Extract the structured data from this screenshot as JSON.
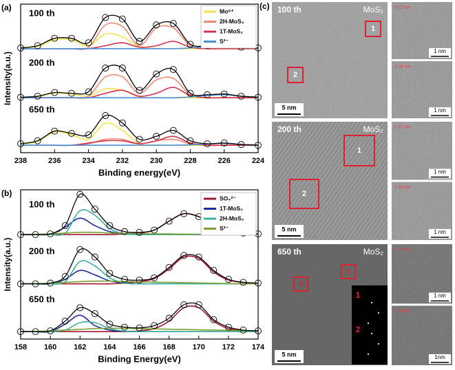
{
  "chart_data": [
    {
      "type": "line",
      "label": "(a)",
      "x_label": "Binding energy(eV)",
      "y_label": "Intensity(a.u.)",
      "x": [
        238,
        237,
        236,
        235,
        234,
        233,
        232,
        231,
        230,
        229,
        228,
        227,
        226,
        225,
        224
      ],
      "xlim": [
        238,
        224
      ],
      "xticks": [
        238,
        236,
        234,
        232,
        230,
        228,
        226,
        224
      ],
      "ylim": [
        0,
        100
      ],
      "spectra": [
        {
          "label": "100 th",
          "envelope": [
            70.5,
            72,
            77,
            77,
            74,
            91,
            90,
            75,
            86,
            87,
            73,
            72,
            73,
            71,
            70.5
          ],
          "series": [
            {
              "name": "Mo⁶⁺",
              "color": "#f2e64a",
              "values": [
                70.3,
                71.5,
                76,
                76,
                72,
                80,
                78,
                71,
                70.2,
                70,
                70,
                70,
                70,
                70,
                70
              ]
            },
            {
              "name": "2H-MoS₂",
              "color": "#f08a72",
              "values": [
                70,
                70,
                70,
                70,
                71,
                86,
                85,
                72,
                84,
                84,
                72,
                70,
                70,
                70,
                70
              ]
            },
            {
              "name": "1T-MoS₂",
              "color": "#d23048",
              "values": [
                70,
                70,
                70,
                70,
                70,
                72,
                74,
                71,
                72,
                75,
                71,
                70,
                70,
                70,
                70
              ]
            },
            {
              "name": "S²⁻",
              "color": "#4a8fd6",
              "values": [
                70,
                70,
                70,
                70,
                70,
                70,
                70,
                70,
                70,
                70,
                70.5,
                71.5,
                73,
                71,
                70.3
              ]
            }
          ]
        },
        {
          "label": "200 th",
          "envelope": [
            37.3,
            38,
            40.5,
            40,
            41,
            57,
            57,
            42,
            53,
            56,
            40,
            39,
            39.5,
            38,
            37.3
          ],
          "series": [
            {
              "name": "Mo⁶⁺",
              "color": "#f2e64a",
              "values": [
                37.2,
                37.8,
                40,
                39.5,
                38,
                43,
                42,
                37.5,
                37,
                37,
                37,
                37,
                37,
                37,
                37
              ]
            },
            {
              "name": "2H-MoS₂",
              "color": "#f08a72",
              "values": [
                37,
                37,
                37,
                37,
                38,
                51,
                51,
                40,
                49,
                50,
                39,
                37,
                37,
                37,
                37
              ]
            },
            {
              "name": "1T-MoS₂",
              "color": "#d23048",
              "values": [
                37,
                37,
                37,
                37,
                37,
                40,
                42,
                38,
                40,
                44,
                38.5,
                37,
                37,
                37,
                37
              ]
            },
            {
              "name": "S²⁻",
              "color": "#4a8fd6",
              "values": [
                37,
                37,
                37,
                37,
                37,
                37,
                37,
                37,
                37,
                37,
                37.5,
                38.5,
                39,
                38,
                37.3
              ]
            }
          ]
        },
        {
          "label": "650 th",
          "envelope": [
            6,
            8,
            14.5,
            13,
            12,
            25,
            20,
            9,
            11,
            15,
            8,
            6,
            6.5,
            5.5,
            5
          ],
          "series": [
            {
              "name": "Mo⁶⁺",
              "color": "#f2e64a",
              "values": [
                5.8,
                7.5,
                14,
                12,
                9,
                20,
                15,
                6,
                5.2,
                5,
                5,
                5,
                5,
                5,
                5
              ]
            },
            {
              "name": "2H-MoS₂",
              "color": "#f08a72",
              "values": [
                5,
                5,
                5,
                5,
                6,
                9,
                9,
                6,
                8,
                9,
                6,
                5,
                5,
                5,
                5
              ]
            },
            {
              "name": "1T-MoS₂",
              "color": "#d23048",
              "values": [
                5,
                5,
                5,
                5,
                6.5,
                8,
                8,
                6,
                8,
                11,
                6.5,
                5,
                5,
                5,
                5
              ]
            },
            {
              "name": "S²⁻",
              "color": "#4a8fd6",
              "values": [
                5,
                5,
                5,
                5,
                5,
                5,
                5,
                5,
                5,
                5,
                5.3,
                5.8,
                6.3,
                5.6,
                5.2
              ]
            }
          ]
        }
      ]
    },
    {
      "type": "line",
      "label": "(b)",
      "x_label": "Binding Energy(eV)",
      "y_label": "Intensity(a.u.)",
      "x": [
        158,
        159,
        160,
        161,
        162,
        163,
        164,
        165,
        166,
        167,
        168,
        169,
        170,
        171,
        172,
        173,
        174
      ],
      "xlim": [
        158,
        174
      ],
      "xticks": [
        158,
        160,
        162,
        164,
        166,
        168,
        170,
        172,
        174
      ],
      "ylim": [
        0,
        100
      ],
      "spectra": [
        {
          "label": "100 th",
          "envelope": [
            70,
            70,
            70.5,
            76,
            97,
            87,
            76,
            72,
            71.5,
            73,
            79,
            84,
            82,
            77,
            73,
            71,
            70.5
          ],
          "series": [
            {
              "name": "SO₄²⁻",
              "color": "#a01830",
              "values": [
                70,
                70,
                70,
                70,
                70,
                70,
                70,
                70.5,
                71,
                73,
                79,
                84,
                82,
                77,
                73,
                71,
                70.5
              ]
            },
            {
              "name": "1T-MoS₂",
              "color": "#1a2aa0",
              "values": [
                70,
                70,
                70.3,
                75,
                81,
                76,
                72,
                70.5,
                70,
                70,
                70,
                70,
                70,
                70,
                70,
                70,
                70
              ]
            },
            {
              "name": "2H-MoS₂",
              "color": "#3ab0a0",
              "values": [
                70,
                70,
                70,
                71,
                86,
                83,
                74,
                70.5,
                70,
                70,
                70,
                70,
                70,
                70,
                70,
                70,
                70
              ]
            },
            {
              "name": "S²⁻",
              "color": "#7aa030",
              "values": [
                70,
                70.2,
                70.5,
                71,
                71.5,
                71.5,
                71,
                70.8,
                70.6,
                70.5,
                70.4,
                70.3,
                70.2,
                70.1,
                70,
                70,
                70
              ]
            }
          ]
        },
        {
          "label": "200 th",
          "envelope": [
            37,
            37,
            37.5,
            42,
            60,
            55,
            44,
            40,
            39.5,
            41,
            48,
            56,
            55,
            46,
            40,
            38,
            37.5
          ],
          "series": [
            {
              "name": "SO₄²⁻",
              "color": "#a01830",
              "values": [
                37,
                37,
                37,
                37,
                37,
                37,
                37,
                37.5,
                38.5,
                40.5,
                47,
                55,
                54,
                45,
                39.5,
                38,
                37.3
              ]
            },
            {
              "name": "1T-MoS₂",
              "color": "#1a2aa0",
              "values": [
                37,
                37,
                37,
                40,
                46,
                43,
                39,
                37.5,
                37,
                37,
                37,
                37,
                37,
                37,
                37,
                37,
                37
              ]
            },
            {
              "name": "2H-MoS₂",
              "color": "#3ab0a0",
              "values": [
                37,
                37,
                37,
                38.5,
                52,
                49,
                41,
                37.5,
                37,
                37,
                37,
                37,
                37,
                37,
                37,
                37,
                37
              ]
            },
            {
              "name": "S²⁻",
              "color": "#7aa030",
              "values": [
                37,
                37.2,
                37.5,
                38,
                38.5,
                38.8,
                38.8,
                38.5,
                38.3,
                38.1,
                38,
                37.8,
                37.6,
                37.4,
                37.2,
                37,
                37
              ]
            }
          ]
        },
        {
          "label": "650 th",
          "envelope": [
            5,
            5,
            5.5,
            12,
            21,
            17,
            10,
            8,
            7.5,
            9,
            14,
            23,
            23,
            13,
            8,
            6,
            5.5
          ],
          "series": [
            {
              "name": "SO₄²⁻",
              "color": "#a01830",
              "values": [
                5,
                5,
                5,
                5,
                5,
                5,
                5,
                5,
                5.5,
                7,
                12,
                21,
                21,
                12,
                7,
                5.8,
                5.3
              ]
            },
            {
              "name": "1T-MoS₂",
              "color": "#1a2aa0",
              "values": [
                5,
                5,
                5,
                10,
                16,
                9,
                6,
                5.2,
                5,
                5,
                5,
                5,
                5,
                5,
                5,
                5,
                5
              ]
            },
            {
              "name": "2H-MoS₂",
              "color": "#3ab0a0",
              "values": [
                5,
                5,
                5,
                6,
                11,
                11,
                7,
                5.3,
                5,
                5,
                5,
                5,
                5,
                5,
                5,
                5,
                5
              ]
            },
            {
              "name": "S²⁻",
              "color": "#7aa030",
              "values": [
                5,
                5.2,
                5.5,
                6,
                6.5,
                7,
                7.2,
                7.2,
                7,
                6.8,
                6.6,
                6.4,
                6.2,
                6,
                5.8,
                5.6,
                5.5
              ]
            }
          ]
        }
      ]
    }
  ],
  "tem": {
    "label": "(c)",
    "rows": [
      {
        "cycle": "100 th",
        "material": "MoS₂",
        "scale": "5 nm",
        "boxes": [
          "1",
          "2"
        ],
        "insets": [
          {
            "spacing": "0.27 nm",
            "scale": "1 nm"
          },
          {
            "spacing": "0.23 nm",
            "scale": "1 nm"
          }
        ]
      },
      {
        "cycle": "200 th",
        "material": "MoS₂",
        "scale": "5 nm",
        "boxes": [
          "1",
          "2"
        ],
        "insets": [
          {
            "spacing": "0.27 nm",
            "scale": "1 nm"
          },
          {
            "spacing": "0.23 nm",
            "scale": "1 nm"
          }
        ]
      },
      {
        "cycle": "650 th",
        "material": "MoS₂",
        "scale": "5 nm",
        "boxes": [
          "1",
          "2"
        ],
        "fft": [
          "1",
          "2"
        ],
        "insets": [
          {
            "spacing": "0.27 nm",
            "scale": "1 nm"
          },
          {
            "spacing": "0.23 nm",
            "scale": "1nm"
          }
        ]
      }
    ]
  }
}
